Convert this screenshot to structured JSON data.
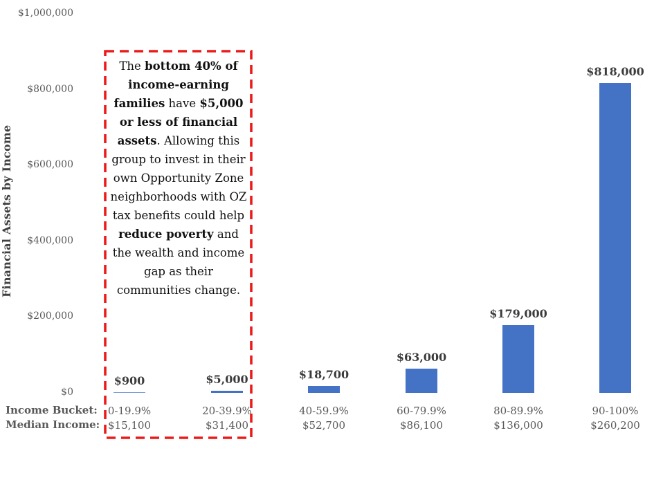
{
  "chart_data": {
    "type": "bar",
    "title": "",
    "ylabel": "Financial Assets by Income",
    "xlabel": "",
    "ylim": [
      0,
      1000000
    ],
    "grid": false,
    "legend_position": "none",
    "bar_color": "#4472C4",
    "thin_bar_color": "#7F9FD9",
    "ytick_labels": [
      "$0",
      "$200,000",
      "$400,000",
      "$600,000",
      "$800,000",
      "$1,000,000"
    ],
    "ytick_values": [
      0,
      200000,
      400000,
      600000,
      800000,
      1000000
    ],
    "categories": [
      "0-19.9%",
      "20-39.9%",
      "40-59.9%",
      "60-79.9%",
      "80-89.9%",
      "90-100%"
    ],
    "median_incomes": [
      "$15,100",
      "$31,400",
      "$52,700",
      "$86,100",
      "$136,000",
      "$260,200"
    ],
    "values": [
      900,
      5000,
      18700,
      63000,
      179000,
      818000
    ],
    "value_labels": [
      "$900",
      "$5,000",
      "$18,700",
      "$63,000",
      "$179,000",
      "$818,000"
    ],
    "x_row_labels": {
      "bucket": "Income Bucket:",
      "median": "Median Income:"
    }
  },
  "annotation": {
    "border_color": "#EC1B1B",
    "segments": [
      {
        "t": "The ",
        "b": false
      },
      {
        "t": "bottom 40% of income-earning families",
        "b": true
      },
      {
        "t": " have ",
        "b": false
      },
      {
        "t": "$5,000 or less of financial assets",
        "b": true
      },
      {
        "t": ". Allowing this group to invest in their own Opportunity Zone neighborhoods with OZ tax benefits could help ",
        "b": false
      },
      {
        "t": "reduce poverty",
        "b": true
      },
      {
        "t": " and the wealth and income gap as their communities change.",
        "b": false
      }
    ]
  }
}
